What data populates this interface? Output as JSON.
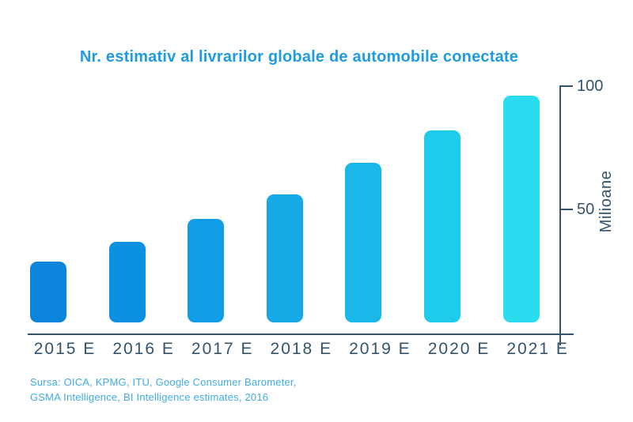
{
  "title": "Nr. estimativ al livrarilor globale de automobile conectate",
  "source": {
    "line1": "Sursa: OICA, KPMG, ITU, Google Consumer Barometer,",
    "line2": "GSMA Intelligence, BI Intelligence estimates, 2016"
  },
  "colors": {
    "title": "#1E9BE2",
    "source": "#41ACE2",
    "axis": "#33536B",
    "bars": [
      "#0B85DC",
      "#0C90E0",
      "#119CE6",
      "#15AAE5",
      "#18B8E9",
      "#1ECBEA",
      "#2BDCF0"
    ]
  },
  "chart_data": {
    "type": "bar",
    "title": "Nr. estimativ al livrarilor globale de automobile conectate",
    "categories": [
      "2015 E",
      "2016 E",
      "2017 E",
      "2018 E",
      "2019 E",
      "2020 E",
      "2021 E"
    ],
    "values": [
      29,
      37,
      46,
      56,
      69,
      82,
      96
    ],
    "xlabel": "",
    "ylabel": "Milioane",
    "ylim": [
      0,
      100
    ],
    "yticks": [
      50,
      100
    ],
    "yaxis_side": "right",
    "grid": false,
    "legend": false,
    "bar_color_gradient": "dark blue to cyan, left to right"
  }
}
